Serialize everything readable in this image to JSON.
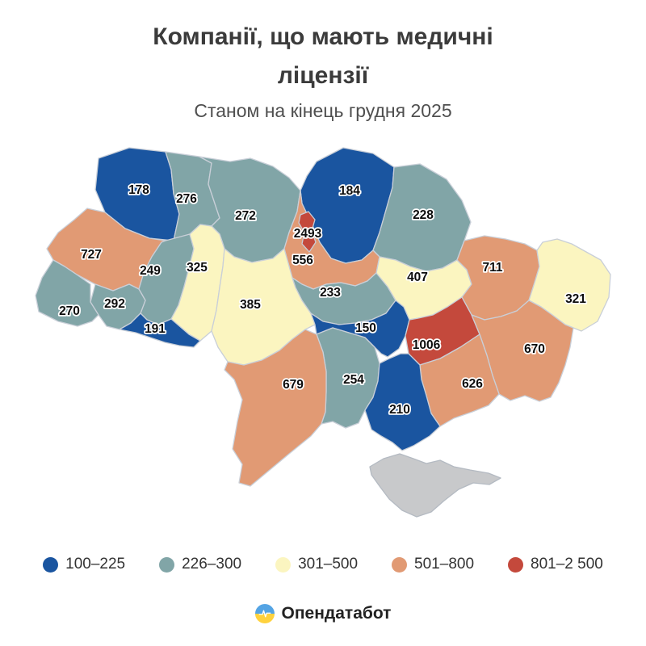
{
  "header": {
    "title": "Компанії, що мають медичні ліцензії",
    "subtitle": "Станом на кінець грудня 2025"
  },
  "palette": {
    "blue": "#1a55a0",
    "teal": "#81a5a7",
    "yellow": "#fbf5c0",
    "salmon": "#e19a74",
    "red": "#c4493c",
    "nodata": "#c8c9cb",
    "border": "#c9cfd8",
    "nodata_border": "#b4bac2"
  },
  "legend": [
    {
      "label": "100–225",
      "color": "blue"
    },
    {
      "label": "226–300",
      "color": "teal"
    },
    {
      "label": "301–500",
      "color": "yellow"
    },
    {
      "label": "501–800",
      "color": "salmon"
    },
    {
      "label": "801–2 500",
      "color": "red"
    }
  ],
  "chart_data": {
    "type": "heatmap",
    "title": "Компанії, що мають медичні ліцензії",
    "subtitle": "Станом на кінець грудня 2025",
    "legend_position": "bottom",
    "bins": [
      "100–225",
      "226–300",
      "301–500",
      "501–800",
      "801–2 500"
    ],
    "regions": [
      {
        "id": "volyn",
        "value": "178",
        "bucket": "blue"
      },
      {
        "id": "rivne",
        "value": "276",
        "bucket": "teal"
      },
      {
        "id": "zhytomyr",
        "value": "272",
        "bucket": "teal"
      },
      {
        "id": "chernihiv",
        "value": "184",
        "bucket": "blue"
      },
      {
        "id": "sumy",
        "value": "228",
        "bucket": "teal"
      },
      {
        "id": "kyiv-oblast",
        "value": "556",
        "bucket": "salmon"
      },
      {
        "id": "kyiv-city",
        "value": "2493",
        "bucket": "red"
      },
      {
        "id": "lviv",
        "value": "727",
        "bucket": "salmon"
      },
      {
        "id": "ternopil",
        "value": "249",
        "bucket": "teal"
      },
      {
        "id": "khmelnytskyi",
        "value": "325",
        "bucket": "yellow"
      },
      {
        "id": "vinnytsia",
        "value": "385",
        "bucket": "yellow"
      },
      {
        "id": "ivano-frankivsk",
        "value": "292",
        "bucket": "teal"
      },
      {
        "id": "zakarpattia",
        "value": "270",
        "bucket": "teal"
      },
      {
        "id": "chernivtsi",
        "value": "191",
        "bucket": "blue"
      },
      {
        "id": "cherkasy",
        "value": "233",
        "bucket": "teal"
      },
      {
        "id": "poltava",
        "value": "407",
        "bucket": "yellow"
      },
      {
        "id": "kharkiv",
        "value": "711",
        "bucket": "salmon"
      },
      {
        "id": "luhansk",
        "value": "321",
        "bucket": "yellow"
      },
      {
        "id": "kirovohrad",
        "value": "150",
        "bucket": "blue"
      },
      {
        "id": "dnipropetrovsk",
        "value": "1006",
        "bucket": "red"
      },
      {
        "id": "donetsk",
        "value": "670",
        "bucket": "salmon"
      },
      {
        "id": "zaporizhzhia",
        "value": "626",
        "bucket": "salmon"
      },
      {
        "id": "mykolaiv",
        "value": "254",
        "bucket": "teal"
      },
      {
        "id": "odesa",
        "value": "679",
        "bucket": "salmon"
      },
      {
        "id": "kherson",
        "value": "210",
        "bucket": "blue"
      },
      {
        "id": "crimea",
        "value": null,
        "bucket": "nodata"
      }
    ]
  },
  "footer": {
    "brand": "Опендатабот"
  }
}
